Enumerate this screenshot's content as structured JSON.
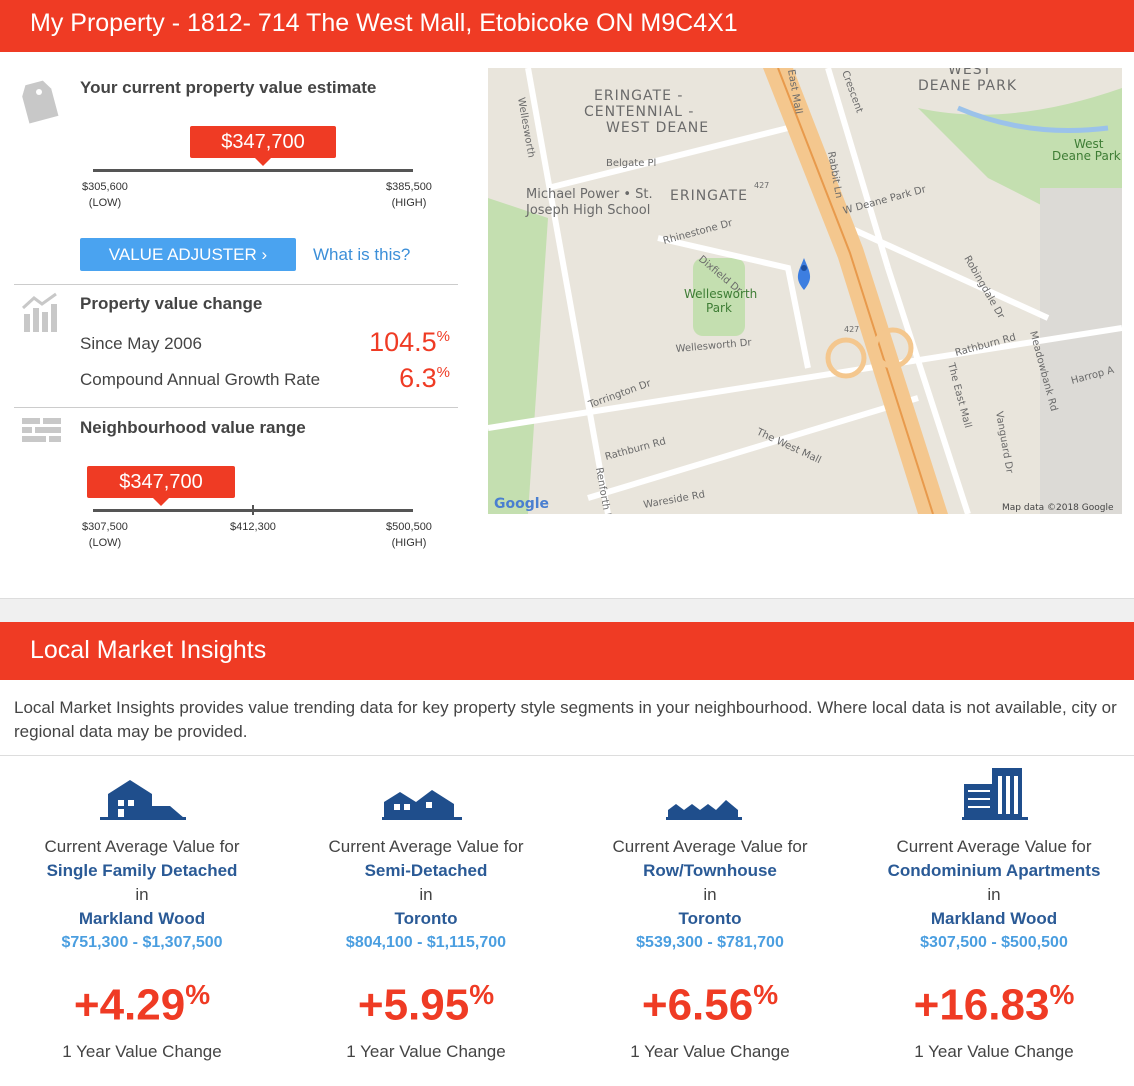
{
  "header": {
    "title": "My Property - 1812- 714 The West Mall, Etobicoke ON M9C4X1"
  },
  "estimate": {
    "title": "Your current property value estimate",
    "value": "$347,700",
    "low": "$305,600",
    "low_label": "(LOW)",
    "high": "$385,500",
    "high_label": "(HIGH)",
    "button": "VALUE ADJUSTER",
    "link": "What is this?"
  },
  "change": {
    "title": "Property value change",
    "rows": [
      {
        "label": "Since May 2006",
        "value": "104.5",
        "unit": "%"
      },
      {
        "label": "Compound Annual Growth Rate",
        "value": "6.3",
        "unit": "%"
      }
    ]
  },
  "neighbourhood": {
    "title": "Neighbourhood value range",
    "value": "$347,700",
    "low": "$307,500",
    "low_label": "(LOW)",
    "mid": "$412,300",
    "high": "$500,500",
    "high_label": "(HIGH)"
  },
  "map": {
    "labels": [
      "WEST",
      "DEANE PARK",
      "ERINGATE -",
      "CENTENNIAL -",
      "WEST DEANE",
      "ERINGATE",
      "Michael Power • St.",
      "Joseph High School",
      "Belgate Pl",
      "Rhinestone Dr",
      "Dixfield Dr",
      "Wellesworth",
      "Park",
      "Wellesworth Dr",
      "Torrington Dr",
      "Rathburn Rd",
      "Rathburn Rd",
      "The West Mall",
      "Wareside Rd",
      "Renforth Dr",
      "The East Mall",
      "Rabbit Ln",
      "W Deane Park Dr",
      "Robingdale Dr",
      "Meadowbank Rd",
      "Harrop A",
      "Vanguard Dr",
      "West",
      "Deane Park",
      "427",
      "427",
      "Google",
      "Map data ©2018 Google",
      "Wellesworth",
      "East Mall",
      "Crescent"
    ]
  },
  "insights": {
    "title": "Local Market Insights",
    "description": "Local Market Insights provides value trending data for key property style segments in your neighbourhood. Where local data is not available, city or regional data may be provided.",
    "cards": [
      {
        "intro": "Current Average Value for",
        "type": "Single Family Detached",
        "in": "in",
        "location": "Markland Wood",
        "range": "$751,300 - $1,307,500",
        "change": "+4.29",
        "unit": "%",
        "caption": "1 Year Value Change"
      },
      {
        "intro": "Current Average Value for",
        "type": "Semi-Detached",
        "in": "in",
        "location": "Toronto",
        "range": "$804,100 - $1,115,700",
        "change": "+5.95",
        "unit": "%",
        "caption": "1 Year Value Change"
      },
      {
        "intro": "Current Average Value for",
        "type": "Row/Townhouse",
        "in": "in",
        "location": "Toronto",
        "range": "$539,300 - $781,700",
        "change": "+6.56",
        "unit": "%",
        "caption": "1 Year Value Change"
      },
      {
        "intro": "Current Average Value for",
        "type": "Condominium Apartments",
        "in": "in",
        "location": "Markland Wood",
        "range": "$307,500 - $500,500",
        "change": "+16.83",
        "unit": "%",
        "caption": "1 Year Value Change"
      }
    ]
  }
}
